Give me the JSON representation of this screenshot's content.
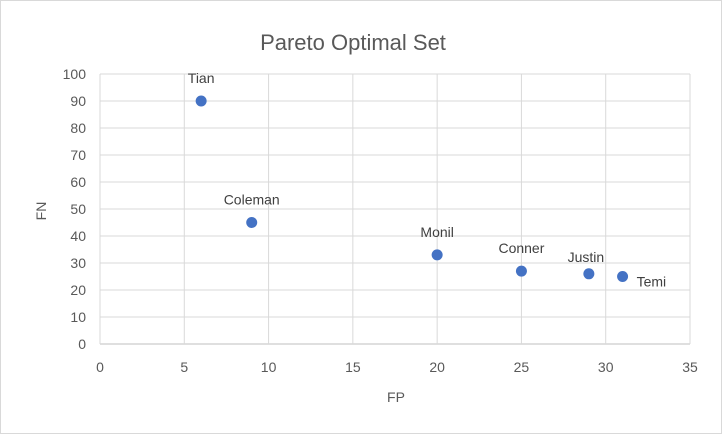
{
  "chart_data": {
    "type": "scatter",
    "title": "Pareto Optimal Set",
    "xlabel": "FP",
    "ylabel": "FN",
    "xlim": [
      0,
      35
    ],
    "ylim": [
      0,
      100
    ],
    "x_ticks": [
      "0",
      "5",
      "10",
      "15",
      "20",
      "25",
      "30",
      "35"
    ],
    "y_ticks": [
      "0",
      "10",
      "20",
      "30",
      "40",
      "50",
      "60",
      "70",
      "80",
      "90",
      "100"
    ],
    "grid": true,
    "legend": "none",
    "marker_color": "#4472c4",
    "points": [
      {
        "label": "Tian",
        "x": 6,
        "y": 90
      },
      {
        "label": "Coleman",
        "x": 9,
        "y": 45
      },
      {
        "label": "Monil",
        "x": 20,
        "y": 33
      },
      {
        "label": "Conner",
        "x": 25,
        "y": 27
      },
      {
        "label": "Justin",
        "x": 29,
        "y": 26
      },
      {
        "label": "Temi",
        "x": 31,
        "y": 25
      }
    ]
  }
}
